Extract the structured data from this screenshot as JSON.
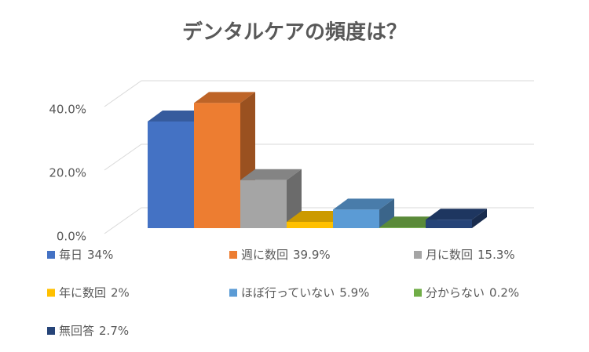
{
  "chart_data": {
    "type": "bar3d",
    "title": "デンタルケアの頻度は？",
    "series": [
      {
        "name": "毎日",
        "color": "#4472c4",
        "values": [
          34
        ],
        "value_labels": [
          "34%"
        ]
      },
      {
        "name": "週に数回",
        "color": "#ed7d31",
        "values": [
          39.9
        ],
        "value_labels": [
          "39.9%"
        ]
      },
      {
        "name": "月に数回",
        "color": "#a5a5a5",
        "values": [
          15.3
        ],
        "value_labels": [
          "15.3%"
        ]
      },
      {
        "name": "年に数回",
        "color": "#ffc000",
        "values": [
          2
        ],
        "value_labels": [
          "2%"
        ]
      },
      {
        "name": "ほぼ行っていない",
        "color": "#5b9bd5",
        "values": [
          5.9
        ],
        "value_labels": [
          "5.9%"
        ]
      },
      {
        "name": "分からない",
        "color": "#70ad47",
        "values": [
          0.2
        ],
        "value_labels": [
          "0.2%"
        ]
      },
      {
        "name": "無回答",
        "color": "#264478",
        "values": [
          2.7
        ],
        "value_labels": [
          "2.7%"
        ]
      }
    ],
    "ylim": [
      0,
      40
    ],
    "yticks": [
      {
        "value": 0,
        "label": "0.0%"
      },
      {
        "value": 20,
        "label": "20.0%"
      },
      {
        "value": 40,
        "label": "40.0%"
      }
    ],
    "grid": true,
    "legend": "bottom"
  }
}
